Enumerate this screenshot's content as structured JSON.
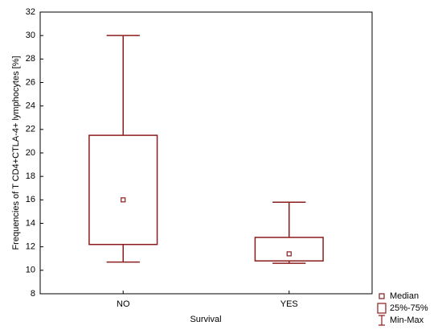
{
  "chart_data": {
    "type": "box",
    "x_label": "Survival",
    "y_label": "Frequencies of T CD4+CTLA-4+ lymphocytes [%]",
    "categories": [
      "NO",
      "YES"
    ],
    "min": [
      10.7,
      10.6
    ],
    "q1": [
      12.2,
      10.8
    ],
    "median": [
      16,
      11.4
    ],
    "q3": [
      21.5,
      12.8
    ],
    "max": [
      30,
      15.8
    ],
    "legend": [
      "Median",
      "25%-75%",
      "Min-Max"
    ],
    "color": "#8b1c1c",
    "ylim": [
      8,
      32
    ],
    "yticks": [
      8,
      10,
      12,
      14,
      16,
      18,
      20,
      22,
      24,
      26,
      28,
      30,
      32
    ]
  }
}
